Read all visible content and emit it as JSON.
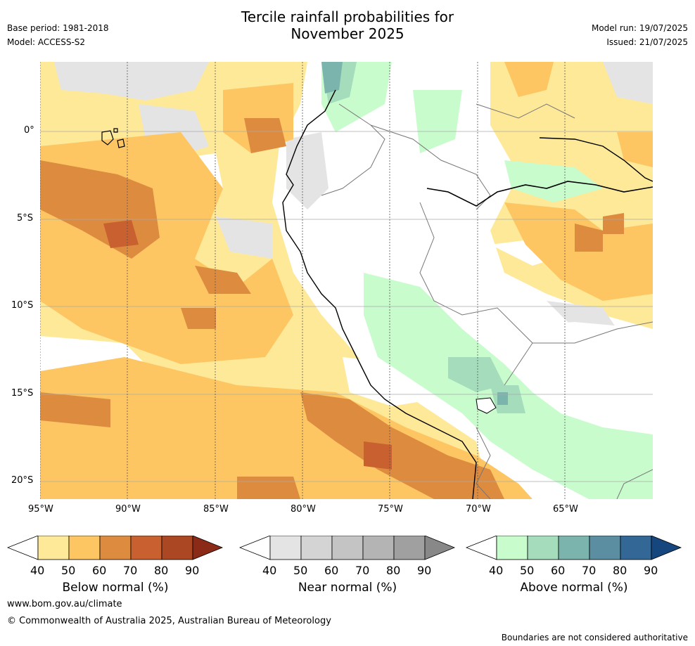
{
  "title_line1": "Tercile rainfall probabilities for",
  "title_line2": "November 2025",
  "base_period": "Base period: 1981-2018",
  "model": "Model: ACCESS-S2",
  "model_run": "Model run: 19/07/2025",
  "issued": "Issued: 21/07/2025",
  "lat_labels": [
    "0°",
    "5°S",
    "10°S",
    "15°S",
    "20°S"
  ],
  "lon_labels": [
    "95°W",
    "90°W",
    "85°W",
    "80°W",
    "75°W",
    "70°W",
    "65°W"
  ],
  "colorbars": [
    {
      "label": "Below normal (%)",
      "ticks": [
        "40",
        "50",
        "60",
        "70",
        "80",
        "90"
      ],
      "colors": [
        "#ffffff",
        "#fee999",
        "#fdc662",
        "#dd8b3f",
        "#c96030",
        "#ab4722",
        "#8b2a17"
      ]
    },
    {
      "label": "Near normal (%)",
      "ticks": [
        "40",
        "50",
        "60",
        "70",
        "80",
        "90"
      ],
      "colors": [
        "#ffffff",
        "#e4e4e4",
        "#d4d4d4",
        "#c4c4c4",
        "#b4b4b4",
        "#a0a0a0",
        "#888888"
      ]
    },
    {
      "label": "Above normal (%)",
      "ticks": [
        "40",
        "50",
        "60",
        "70",
        "80",
        "90"
      ],
      "colors": [
        "#ffffff",
        "#c8fccc",
        "#a4dcbc",
        "#7ab4ac",
        "#5a8ea0",
        "#336896",
        "#16467e"
      ]
    }
  ],
  "website": "www.bom.gov.au/climate",
  "copyright": "© Commonwealth of Australia 2025, Australian Bureau of Meteorology",
  "disclaimer": "Boundaries are not considered authoritative"
}
